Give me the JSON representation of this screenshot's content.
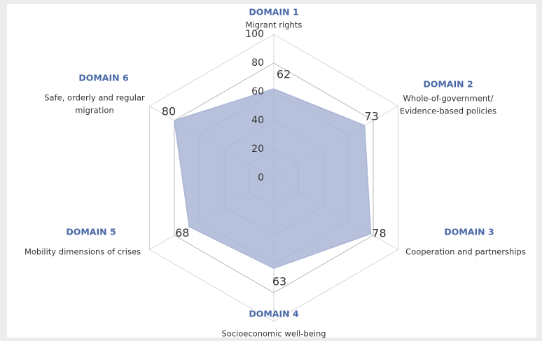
{
  "chart_data": {
    "type": "radar",
    "categories": [
      {
        "domain": "DOMAIN 1",
        "lines": [
          "Migrant rights"
        ]
      },
      {
        "domain": "DOMAIN 2",
        "lines": [
          "Whole-of-government/",
          "Evidence-based policies"
        ]
      },
      {
        "domain": "DOMAIN 3",
        "lines": [
          "Cooperation and partnerships"
        ]
      },
      {
        "domain": "DOMAIN 4",
        "lines": [
          "Socioeconomic well-being"
        ]
      },
      {
        "domain": "DOMAIN 5",
        "lines": [
          "Mobility dimensions of crises"
        ]
      },
      {
        "domain": "DOMAIN 6",
        "lines": [
          "Safe, orderly and regular",
          "migration"
        ]
      }
    ],
    "values": [
      62,
      73,
      78,
      63,
      68,
      80
    ],
    "color": "#aab6d6",
    "rlim": [
      0,
      100
    ],
    "rticks": [
      0,
      20,
      40,
      60,
      80,
      100
    ],
    "grid": true
  }
}
